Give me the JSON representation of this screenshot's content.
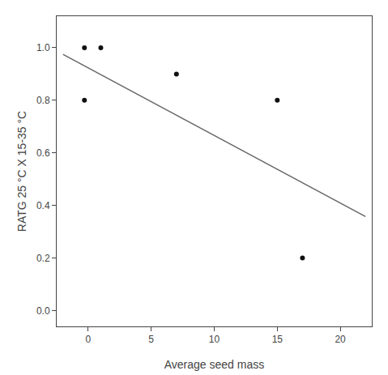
{
  "chart_data": {
    "type": "scatter",
    "xlabel": "Average seed mass",
    "ylabel": "RATG 25 °C X 15-35 °C",
    "series": [
      {
        "type": "scatter",
        "color": "#111111",
        "x": [
          -0.3,
          1.0,
          -0.3,
          7.0,
          15.0,
          17.0
        ],
        "values": [
          1.0,
          1.0,
          0.8,
          0.9,
          0.8,
          0.2
        ]
      },
      {
        "type": "line",
        "color": "#666666",
        "x": [
          -2.0,
          22.0
        ],
        "values": [
          0.975,
          0.358
        ]
      }
    ],
    "xlim": [
      -2.5,
      22.5
    ],
    "ylim": [
      -0.06,
      1.12
    ],
    "xticks": [
      0,
      5,
      10,
      15,
      20
    ],
    "yticks": [
      {
        "value": 0.0,
        "label": "0.0"
      },
      0.2,
      0.4,
      0.6,
      0.8,
      {
        "value": 1.0,
        "label": "1.0"
      }
    ],
    "grid": false
  }
}
